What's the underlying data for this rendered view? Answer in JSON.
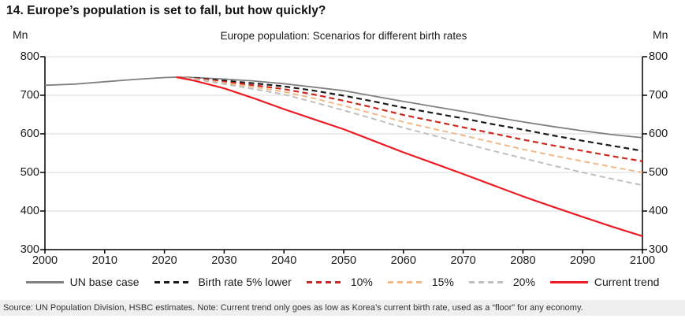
{
  "page": {
    "title": "14. Europe’s population is set to fall, but how quickly?",
    "source_note": "Source: UN Population Division, HSBC estimates. Note: Current trend only goes as low as Korea’s current birth rate, used as a “floor” for any economy."
  },
  "chart_data": {
    "type": "line",
    "title": "Europe population: Scenarios for different birth rates",
    "unit_label": "Mn",
    "xlabel": "",
    "ylabel": "Mn",
    "xlim": [
      2000,
      2100
    ],
    "ylim": [
      300,
      800
    ],
    "x_ticks": [
      2000,
      2010,
      2020,
      2030,
      2040,
      2050,
      2060,
      2070,
      2080,
      2090,
      2100
    ],
    "y_ticks": [
      800,
      700,
      600,
      500,
      400,
      300
    ],
    "grid": "horizontal",
    "legend_position": "bottom",
    "axis_color": "#000000",
    "grid_color": "#d9d9d9",
    "series": [
      {
        "name": "UN base case",
        "style": "solid",
        "color": "#808080",
        "width": 1.8,
        "x": [
          2000,
          2005,
          2010,
          2015,
          2020,
          2022,
          2025,
          2030,
          2035,
          2040,
          2045,
          2050,
          2055,
          2060,
          2065,
          2070,
          2075,
          2080,
          2085,
          2090,
          2095,
          2100
        ],
        "y": [
          726,
          729,
          735,
          741,
          746,
          747,
          746,
          742,
          737,
          730,
          721,
          712,
          698,
          684,
          671,
          658,
          644,
          631,
          619,
          608,
          598,
          590
        ]
      },
      {
        "name": "Birth rate 5% lower",
        "style": "dashed",
        "color": "#1a1a1a",
        "width": 2.2,
        "x": [
          2022,
          2025,
          2030,
          2035,
          2040,
          2045,
          2050,
          2055,
          2060,
          2065,
          2070,
          2075,
          2080,
          2085,
          2090,
          2095,
          2100
        ],
        "y": [
          747,
          745,
          738,
          731,
          723,
          712,
          699,
          684,
          668,
          654,
          640,
          625,
          611,
          596,
          582,
          569,
          556
        ]
      },
      {
        "name": "10%",
        "style": "dashed",
        "color": "#cc2a20",
        "width": 2.2,
        "x": [
          2022,
          2025,
          2030,
          2035,
          2040,
          2045,
          2050,
          2055,
          2060,
          2065,
          2070,
          2075,
          2080,
          2085,
          2090,
          2095,
          2100
        ],
        "y": [
          747,
          744,
          735,
          726,
          716,
          702,
          686,
          668,
          649,
          633,
          617,
          601,
          585,
          570,
          556,
          542,
          529
        ]
      },
      {
        "name": "15%",
        "style": "dashed",
        "color": "#f2b988",
        "width": 2,
        "x": [
          2022,
          2025,
          2030,
          2035,
          2040,
          2045,
          2050,
          2055,
          2060,
          2065,
          2070,
          2075,
          2080,
          2085,
          2090,
          2095,
          2100
        ],
        "y": [
          747,
          743,
          732,
          721,
          709,
          692,
          673,
          652,
          631,
          613,
          596,
          578,
          560,
          544,
          529,
          514,
          500
        ]
      },
      {
        "name": "20%",
        "style": "dashed",
        "color": "#bfbfbf",
        "width": 2,
        "x": [
          2022,
          2025,
          2030,
          2035,
          2040,
          2045,
          2050,
          2055,
          2060,
          2065,
          2070,
          2075,
          2080,
          2085,
          2090,
          2095,
          2100
        ],
        "y": [
          747,
          742,
          729,
          716,
          702,
          682,
          661,
          639,
          616,
          596,
          576,
          556,
          537,
          518,
          500,
          483,
          467
        ]
      },
      {
        "name": "Current trend",
        "style": "solid",
        "color": "#ed1c24",
        "width": 2.2,
        "x": [
          2022,
          2025,
          2030,
          2035,
          2040,
          2045,
          2050,
          2055,
          2060,
          2065,
          2070,
          2075,
          2080,
          2085,
          2090,
          2095,
          2100
        ],
        "y": [
          747,
          738,
          718,
          692,
          664,
          638,
          612,
          582,
          552,
          524,
          496,
          467,
          438,
          411,
          385,
          359,
          335
        ]
      }
    ]
  }
}
